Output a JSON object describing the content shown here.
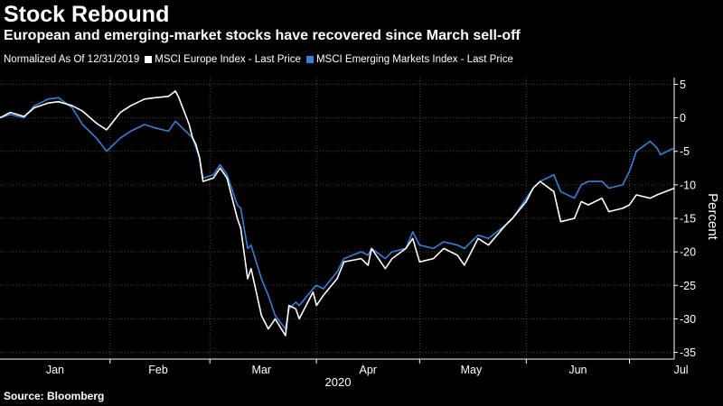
{
  "title": "Stock Rebound",
  "subtitle": "European and emerging-market stocks have recovered since March sell-off",
  "legend": {
    "note": "Normalized As Of 12/31/2019",
    "items": [
      {
        "label": "MSCI Europe Index - Last Price",
        "color": "#ffffff"
      },
      {
        "label": "MSCI Emerging Markets Index - Last Price",
        "color": "#3a7fd6"
      }
    ]
  },
  "source": "Source: Bloomberg",
  "colors": {
    "background": "#000000",
    "europe": "#ffffff",
    "em": "#3a7fd6",
    "axis": "#ffffff"
  },
  "chart_data": {
    "type": "line",
    "xlabel": "2020",
    "ylabel": "Percent",
    "ylim": [
      -36,
      6
    ],
    "yticks": [
      5,
      0,
      -5,
      -10,
      -15,
      -20,
      -25,
      -30,
      -35
    ],
    "ytick_labels": [
      "5",
      "0",
      "-5",
      "-10",
      "-15",
      "-20",
      "-25",
      "-30",
      "-35"
    ],
    "xlim": [
      "2019-12-31",
      "2020-07-14"
    ],
    "x_ticks": [
      "2020-01-16",
      "2020-02-15",
      "2020-03-16",
      "2020-04-16",
      "2020-05-16",
      "2020-06-16",
      "2020-07-16"
    ],
    "x_tick_labels": [
      "Jan",
      "Feb",
      "Mar",
      "Apr",
      "May",
      "Jun",
      "Jul"
    ],
    "x_boundaries": [
      "2020-02-01",
      "2020-03-01",
      "2020-04-01",
      "2020-05-01",
      "2020-06-01",
      "2020-07-01"
    ],
    "grid": true,
    "legend_position": "top-left",
    "series": [
      {
        "name": "MSCI Europe Index - Last Price",
        "color": "#ffffff",
        "points": [
          [
            "2019-12-31",
            0
          ],
          [
            "2020-01-03",
            0.8
          ],
          [
            "2020-01-07",
            0.2
          ],
          [
            "2020-01-10",
            1.5
          ],
          [
            "2020-01-14",
            2.2
          ],
          [
            "2020-01-17",
            2.4
          ],
          [
            "2020-01-21",
            1.8
          ],
          [
            "2020-01-24",
            1.0
          ],
          [
            "2020-01-28",
            -0.8
          ],
          [
            "2020-01-31",
            -1.8
          ],
          [
            "2020-02-04",
            0.8
          ],
          [
            "2020-02-07",
            1.8
          ],
          [
            "2020-02-11",
            2.8
          ],
          [
            "2020-02-14",
            3.0
          ],
          [
            "2020-02-18",
            3.2
          ],
          [
            "2020-02-20",
            4.0
          ],
          [
            "2020-02-21",
            3.0
          ],
          [
            "2020-02-24",
            -1.0
          ],
          [
            "2020-02-25",
            -3.0
          ],
          [
            "2020-02-26",
            -4.0
          ],
          [
            "2020-02-27",
            -6.0
          ],
          [
            "2020-02-28",
            -9.5
          ],
          [
            "2020-03-02",
            -9.0
          ],
          [
            "2020-03-04",
            -7.5
          ],
          [
            "2020-03-06",
            -9.0
          ],
          [
            "2020-03-09",
            -15.0
          ],
          [
            "2020-03-10",
            -16.5
          ],
          [
            "2020-03-12",
            -24.0
          ],
          [
            "2020-03-13",
            -22.5
          ],
          [
            "2020-03-16",
            -29.5
          ],
          [
            "2020-03-18",
            -31.5
          ],
          [
            "2020-03-20",
            -30.0
          ],
          [
            "2020-03-23",
            -32.5
          ],
          [
            "2020-03-24",
            -28.0
          ],
          [
            "2020-03-26",
            -28.5
          ],
          [
            "2020-03-27",
            -30.0
          ],
          [
            "2020-03-31",
            -26.0
          ],
          [
            "2020-04-01",
            -28.0
          ],
          [
            "2020-04-03",
            -26.5
          ],
          [
            "2020-04-07",
            -24.0
          ],
          [
            "2020-04-09",
            -21.5
          ],
          [
            "2020-04-14",
            -21.0
          ],
          [
            "2020-04-16",
            -22.0
          ],
          [
            "2020-04-17",
            -19.5
          ],
          [
            "2020-04-21",
            -22.5
          ],
          [
            "2020-04-23",
            -21.0
          ],
          [
            "2020-04-27",
            -19.5
          ],
          [
            "2020-04-29",
            -18.0
          ],
          [
            "2020-05-01",
            -21.5
          ],
          [
            "2020-05-05",
            -21.0
          ],
          [
            "2020-05-08",
            -19.5
          ],
          [
            "2020-05-12",
            -20.5
          ],
          [
            "2020-05-14",
            -22.0
          ],
          [
            "2020-05-18",
            -18.0
          ],
          [
            "2020-05-21",
            -19.0
          ],
          [
            "2020-05-26",
            -16.0
          ],
          [
            "2020-05-28",
            -15.0
          ],
          [
            "2020-06-01",
            -12.5
          ],
          [
            "2020-06-03",
            -10.5
          ],
          [
            "2020-06-05",
            -9.5
          ],
          [
            "2020-06-09",
            -11.0
          ],
          [
            "2020-06-11",
            -15.5
          ],
          [
            "2020-06-15",
            -15.0
          ],
          [
            "2020-06-17",
            -12.5
          ],
          [
            "2020-06-19",
            -13.0
          ],
          [
            "2020-06-23",
            -12.0
          ],
          [
            "2020-06-25",
            -14.0
          ],
          [
            "2020-06-29",
            -13.5
          ],
          [
            "2020-07-01",
            -13.0
          ],
          [
            "2020-07-03",
            -11.5
          ],
          [
            "2020-07-07",
            -12.0
          ],
          [
            "2020-07-09",
            -11.5
          ],
          [
            "2020-07-14",
            -10.5
          ]
        ]
      },
      {
        "name": "MSCI Emerging Markets Index - Last Price",
        "color": "#3a7fd6",
        "points": [
          [
            "2019-12-31",
            0
          ],
          [
            "2020-01-03",
            0.5
          ],
          [
            "2020-01-07",
            0.0
          ],
          [
            "2020-01-10",
            1.8
          ],
          [
            "2020-01-14",
            2.8
          ],
          [
            "2020-01-17",
            3.0
          ],
          [
            "2020-01-21",
            1.5
          ],
          [
            "2020-01-24",
            -1.0
          ],
          [
            "2020-01-28",
            -3.0
          ],
          [
            "2020-01-31",
            -5.0
          ],
          [
            "2020-02-04",
            -3.0
          ],
          [
            "2020-02-07",
            -2.0
          ],
          [
            "2020-02-11",
            -1.0
          ],
          [
            "2020-02-14",
            -1.5
          ],
          [
            "2020-02-18",
            -2.0
          ],
          [
            "2020-02-20",
            -0.5
          ],
          [
            "2020-02-21",
            -1.0
          ],
          [
            "2020-02-24",
            -2.5
          ],
          [
            "2020-02-25",
            -3.0
          ],
          [
            "2020-02-26",
            -4.5
          ],
          [
            "2020-02-27",
            -6.0
          ],
          [
            "2020-02-28",
            -9.0
          ],
          [
            "2020-03-02",
            -8.5
          ],
          [
            "2020-03-04",
            -7.0
          ],
          [
            "2020-03-06",
            -8.5
          ],
          [
            "2020-03-09",
            -13.0
          ],
          [
            "2020-03-10",
            -13.5
          ],
          [
            "2020-03-12",
            -19.5
          ],
          [
            "2020-03-13",
            -19.0
          ],
          [
            "2020-03-16",
            -24.0
          ],
          [
            "2020-03-18",
            -26.5
          ],
          [
            "2020-03-20",
            -29.5
          ],
          [
            "2020-03-23",
            -31.5
          ],
          [
            "2020-03-24",
            -28.5
          ],
          [
            "2020-03-26",
            -27.5
          ],
          [
            "2020-03-27",
            -28.0
          ],
          [
            "2020-03-31",
            -25.5
          ],
          [
            "2020-04-01",
            -25.0
          ],
          [
            "2020-04-03",
            -25.5
          ],
          [
            "2020-04-07",
            -23.0
          ],
          [
            "2020-04-09",
            -21.0
          ],
          [
            "2020-04-14",
            -20.0
          ],
          [
            "2020-04-16",
            -20.5
          ],
          [
            "2020-04-17",
            -19.5
          ],
          [
            "2020-04-21",
            -21.0
          ],
          [
            "2020-04-23",
            -20.0
          ],
          [
            "2020-04-27",
            -19.5
          ],
          [
            "2020-04-29",
            -17.0
          ],
          [
            "2020-05-01",
            -19.0
          ],
          [
            "2020-05-05",
            -19.5
          ],
          [
            "2020-05-08",
            -18.5
          ],
          [
            "2020-05-12",
            -19.0
          ],
          [
            "2020-05-14",
            -19.5
          ],
          [
            "2020-05-18",
            -17.5
          ],
          [
            "2020-05-21",
            -18.0
          ],
          [
            "2020-05-26",
            -16.0
          ],
          [
            "2020-05-28",
            -15.0
          ],
          [
            "2020-06-01",
            -12.0
          ],
          [
            "2020-06-03",
            -10.5
          ],
          [
            "2020-06-05",
            -9.5
          ],
          [
            "2020-06-09",
            -8.5
          ],
          [
            "2020-06-11",
            -11.0
          ],
          [
            "2020-06-15",
            -12.0
          ],
          [
            "2020-06-17",
            -10.0
          ],
          [
            "2020-06-19",
            -9.5
          ],
          [
            "2020-06-23",
            -9.5
          ],
          [
            "2020-06-25",
            -10.5
          ],
          [
            "2020-06-29",
            -10.0
          ],
          [
            "2020-07-01",
            -8.0
          ],
          [
            "2020-07-03",
            -5.0
          ],
          [
            "2020-07-07",
            -3.5
          ],
          [
            "2020-07-09",
            -4.5
          ],
          [
            "2020-07-10",
            -5.5
          ],
          [
            "2020-07-14",
            -4.5
          ]
        ]
      }
    ]
  }
}
